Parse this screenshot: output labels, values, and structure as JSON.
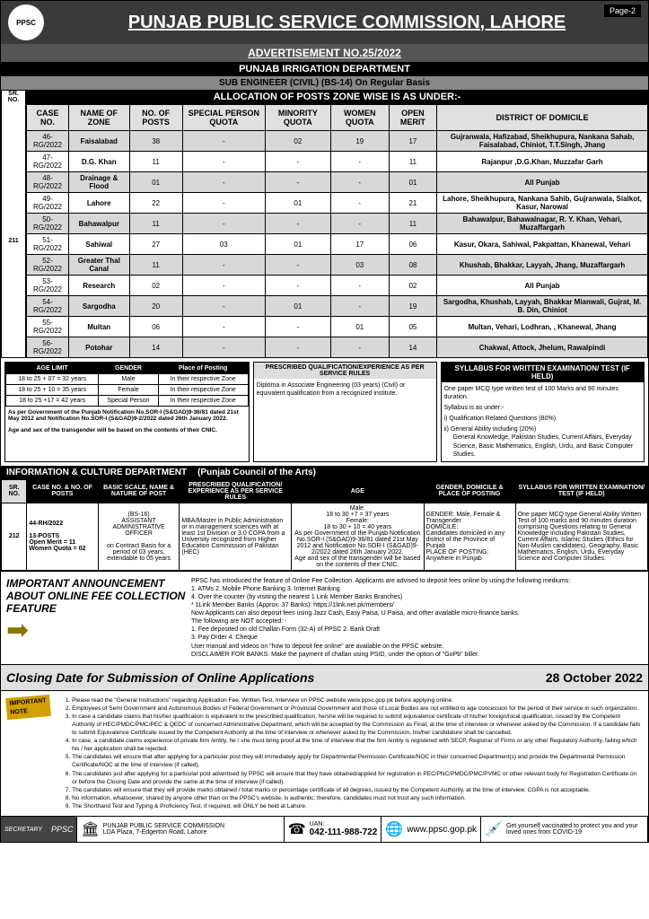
{
  "header": {
    "org": "PUNJAB PUBLIC SERVICE COMMISSION, LAHORE",
    "page": "Page-2",
    "logo": "PPSC"
  },
  "adv": "ADVERTISEMENT NO.25/2022",
  "dept1": "PUNJAB IRRIGATION DEPARTMENT",
  "sub1": "SUB ENGINEER (CIVIL) (BS-14) On Regular Basis",
  "alloc": "ALLOCATION OF POSTS ZONE WISE IS AS UNDER:-",
  "sr1": "SR. NO.",
  "srno1": "211",
  "cols": [
    "CASE NO.",
    "NAME OF ZONE",
    "NO. OF POSTS",
    "SPECIAL PERSON QUOTA",
    "MINORITY QUOTA",
    "WOMEN QUOTA",
    "OPEN MERIT",
    "DISTRICT OF DOMICILE"
  ],
  "rows": [
    [
      "46-RG/2022",
      "Faisalabad",
      "38",
      "-",
      "02",
      "19",
      "17",
      "Gujranwala, Hafizabad, Sheikhupura, Nankana Sahab, Faisalabad, Chiniot, T.T.Singh, Jhang"
    ],
    [
      "47-RG/2022",
      "D.G. Khan",
      "11",
      "-",
      "-",
      "-",
      "11",
      "Rajanpur ,D.G.Khan, Muzzafar Garh"
    ],
    [
      "48-RG/2022",
      "Drainage & Flood",
      "01",
      "-",
      "-",
      "-",
      "01",
      "All Punjab"
    ],
    [
      "49-RG/2022",
      "Lahore",
      "22",
      "-",
      "01",
      "-",
      "21",
      "Lahore, Sheikhupura, Nankana Sahib, Gujranwala, Sialkot, Kasur, Narowal"
    ],
    [
      "50-RG/2022",
      "Bahawalpur",
      "11",
      "-",
      "-",
      "-",
      "11",
      "Bahawalpur, Bahawalnagar, R. Y. Khan, Vehari, Muzaffargarh"
    ],
    [
      "51-RG/2022",
      "Sahiwal",
      "27",
      "03",
      "01",
      "17",
      "06",
      "Kasur, Okara, Sahiwal, Pakpattan, Khanewal, Vehari"
    ],
    [
      "52-RG/2022",
      "Greater Thal Canal",
      "11",
      "-",
      "-",
      "03",
      "08",
      "Khushab, Bhakkar, Layyah, Jhang, Muzaffargarh"
    ],
    [
      "53-RG/2022",
      "Research",
      "02",
      "-",
      "-",
      "-",
      "02",
      "All Punjab"
    ],
    [
      "54-RG/2022",
      "Sargodha",
      "20",
      "-",
      "01",
      "-",
      "19",
      "Sargodha, Khushab, Layyah, Bhakkar Mianwali, Gujrat, M. B. Din, Chiniot"
    ],
    [
      "55-RG/2022",
      "Multan",
      "06",
      "-",
      "-",
      "01",
      "05",
      "Multan, Vehari, Lodhran, , Khanewal, Jhang"
    ],
    [
      "56-RG/2022",
      "Potohar",
      "14",
      "-",
      "-",
      "-",
      "14",
      "Chakwal, Attock, Jhelum, Rawalpindi"
    ]
  ],
  "age": {
    "h1": "AGE LIMIT",
    "h2": "GENDER",
    "h3": "Place of Posting",
    "r": [
      [
        "18 to 25 + 07 = 32 years",
        "Male",
        "In their respective Zone"
      ],
      [
        "18 to 25 + 10 = 35 years",
        "Female",
        "In their respective Zone"
      ],
      [
        "18 to 25 +17 = 42 years",
        "Special Person",
        "In their respective Zone"
      ]
    ],
    "note1": "As per Government of the Punjab Notification No.SOR-I (S&GAD)9-36/81 dated 21st May 2012 and Notification No.SOR-I (S&GAD)9-2/2022 dated 26th January 2022.",
    "note2": "Age and sex of the transgender will be based on the contents of their CNIC."
  },
  "qual": {
    "h": "PRESCRIBED QUALIFICATION/EXPERIENCE AS PER SERVICE RULES",
    "t": "Diploma in Associate Engineering (03 years) (Civil) or equivalent qualification from a recognized institute."
  },
  "syll": {
    "h": "SYLLABUS FOR WRITTEN EXAMINATION/ TEST (IF HELD)",
    "t1": "One paper MCQ type written test of 100 Marks and 90 minutes duration.",
    "t2": "Syllabus is as under:-",
    "i1": "i) Qualification Related Questions (80%)",
    "i2": "ii) General Ability including (20%)",
    "i3": "General Knowledge, Pakistan Studies, Current Affairs, Everyday Science, Basic Mathematics, English, Urdu, and Basic Computer Studies."
  },
  "dept2a": "INFORMATION & CULTURE DEPARTMENT",
  "dept2b": "(Punjab Council of the Arts)",
  "t2": {
    "sr": "SR. NO.",
    "srv": "212",
    "c1": "CASE NO. & NO. OF POSTS",
    "c2": "BASIC SCALE, NAME & NATURE OF POST",
    "c3": "PRESCRIBED QUALIFICATION/ EXPERIENCE AS PER SERVICE RULES",
    "c4": "AGE",
    "c5": "GENDER, DOMICILE & PLACE OF POSTING",
    "c6": "SYLLABUS FOR WRITTEN EXAMINATION/ TEST (IF HELD)",
    "v1": "44-RH/2022\n\n13-POSTS\nOpen Merit = 11\nWomen Quota = 02",
    "v2": "(BS-16)\nASSISTANT ADMINISTRATIVE OFFICER\n\non Contract Basis for a period of 03 years, extendable to 05 years",
    "v3": "MBA/Master in Public Administration or in management sciences with at least 1st Division or 3.0 CGPA from a University recognized from Higher Education Commission of Pakistan (HEC)",
    "v4": "Male:\n18 to 30 +7 = 37 years\nFemale:\n18 to 30 + 10 = 40 years\nAs per Government of the Punjab Notification No.SOR-I (S&GAD)9-36/81 dated 21st May 2012 and Notification No.SOR-I (S&GAD)9-2/2022 dated 26th January 2022.\nAge and sex of the transgender will be based on the contents of their CNIC.",
    "v5": "GENDER: Male, Female & Transgender\nDOMICILE:\nCandidates domiciled in any district of the Province of Punjab\nPLACE OF POSTING:\nAnywhere in Punjab",
    "v6": "One paper MCQ type General Ability Written Test of 100 marks and 90 minutes duration comprising Questions relating to General Knowledge including Pakistan Studies, Current Affairs, Islamic Studies (Ethics for Non-Muslim candidates), Geography, Basic Mathematics, English, Urdu, Everyday Science and Computer Studies."
  },
  "ann": {
    "title": "IMPORTANT ANNOUNCEMENT ABOUT ONLINE FEE COLLECTION FEATURE",
    "body": "PPSC has introduced the feature of Online Fee Collection. Applicants are advised to deposit fees online by using the following mediums:\n1. ATMs    2. Mobile Phone Banking    3. Internet Banking\n4. Over the counter (by visiting the nearest 1 Link Member Banks Branches)\n* 1Link Member Banks (Approx. 37 Banks): https://1link.net.pk/members/\nNow Applicants can also deposit fees using Jazz Cash, Easy Paisa, U Paisa, and other available micro-finance banks.\nThe following are NOT accepted: -\n1. Fee deposited on old Challan Form (32-A) of PPSC    2. Bank Draft\n3. Pay Order    4. Cheque\nUser manual and videos on \"how to deposit fee online\" are available on the PPSC website.\nDISCLAIMER FOR BANKS: Make the payment of challan using PSID, under the option of \"GoPb\" biller."
  },
  "closing": {
    "l": "Closing Date for Submission of Online Applications",
    "r": "28 October 2022"
  },
  "notes": [
    "Please read the \"General Instructions\" regarding Application Fee, Written Test, Interview on PPSC website www.ppsc.gop.pk before applying online.",
    "Employees of Semi Government and Autonomous Bodies of Federal Government or Provincial Government and those of Local Bodies are not entitled to age concession for the period of their service in such organization.",
    "In case a candidate claims that his/her qualification is equivalent to the prescribed qualification, he/she will be required to submit equivalence certificate of his/her foreign/local qualification, issued by the Competent Authority of HEC/PMDC/PMC/PEC & QEDC of concerned Administrative Department, which will be accepted by the Commission as Final, at the time of interview or whenever asked by the Commission. If a candidate fails to submit Equivalence Certificate issued by the Competent Authority at the time of interview or whenever asked by the Commission, his/her candidature shall be cancelled.",
    "In case, a candidate claims experience of private firm /entity, he / she must bring proof at the time of interview that the firm /entity is registered with SECP, Registrar of Firms or any other Regulatory Authority, failing which his / her application shall be rejected.",
    "The candidates will ensure that after applying for a particular post they will immediately apply for Departmental Permission Certificate/NOC in their concerned Department(s) and provide the Departmental Permission Certificate/NOC at the time of interview (if called).",
    "The candidates just after applying for a particular post advertised by PPSC will ensure that they have obtained/applied for registration in PEC/PNC/PMDC/PMC/PVMC or other relevant body for Registration Certificate on or before the Closing Date and provide the same at the time of interview (if called).",
    "The candidates will ensure that they will provide marks obtained / total marks or percentage certificate of all degrees, issued by the Competent Authority, at the time of interview. CGPA is not acceptable.",
    "No information, whatsoever, shared by anyone other than on the PPSC's website, is authentic; therefore, candidates must not trust any such information.",
    "The Shorthand Test and Typing & Proficiency Test, if required, will ONLY be held at Lahore."
  ],
  "notetag": "IMPORTANT NOTE",
  "footer": {
    "sec": "SECRETARY",
    "ppsc": "PPSC",
    "addr": "PUNJAB PUBLIC SERVICE COMMISSION\nLDA Plaza, 7-Edgerton Road, Lahore",
    "uan": "UAN:",
    "phone": "042-111-988-722",
    "web": "www.ppsc.gop.pk",
    "vac": "Get yourself vaccinated to protect you and your loved ones from COVID-19"
  }
}
